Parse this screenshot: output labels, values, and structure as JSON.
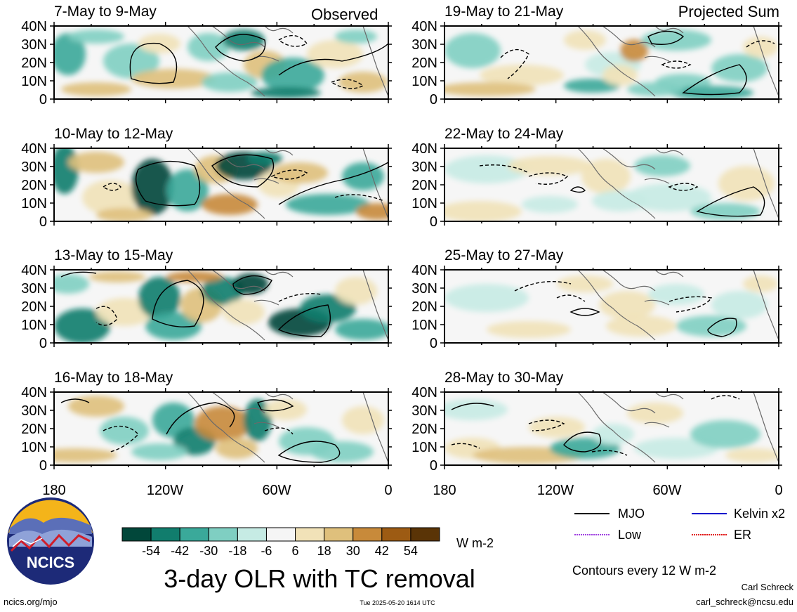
{
  "header_labels": {
    "left": "Observed",
    "right": "Projected Sum"
  },
  "panels": [
    {
      "label": "7-May to 9-May"
    },
    {
      "label": "19-May to 21-May"
    },
    {
      "label": "10-May to 12-May"
    },
    {
      "label": "22-May to 24-May"
    },
    {
      "label": "13-May to 15-May"
    },
    {
      "label": "25-May to 27-May"
    },
    {
      "label": "16-May to 18-May"
    },
    {
      "label": "28-May to 30-May"
    }
  ],
  "y_ticks": [
    "40N",
    "30N",
    "20N",
    "10N",
    "0"
  ],
  "x_ticks": [
    "180",
    "120W",
    "60W",
    "0"
  ],
  "colorbar": {
    "colors": [
      "#01473a",
      "#117d6d",
      "#3aa99a",
      "#7fcfc2",
      "#c6ebe4",
      "#f5f5f5",
      "#f1e2b8",
      "#dfc07c",
      "#c88a3a",
      "#9d5b13",
      "#5a3406"
    ],
    "tick_labels": [
      "-54",
      "-42",
      "-30",
      "-18",
      "-6",
      "6",
      "18",
      "30",
      "42",
      "54"
    ],
    "unit": "W m-2"
  },
  "title": "3-day OLR with TC removal",
  "logo_text": "NCICS",
  "legend": {
    "items": [
      {
        "label": "MJO",
        "color": "#000000"
      },
      {
        "label": "Kelvin x2",
        "color": "#0000cc"
      },
      {
        "label": "Low",
        "color": "#a040e0"
      },
      {
        "label": "ER",
        "color": "#e00000"
      }
    ],
    "contour_note": "Contours every 12 W m-2"
  },
  "footer": {
    "url": "ncics.org/mjo",
    "timestamp": "Tue 2025-05-20 1614 UTC",
    "author": "Carl Schreck",
    "email": "carl_schreck@ncsu.edu"
  }
}
